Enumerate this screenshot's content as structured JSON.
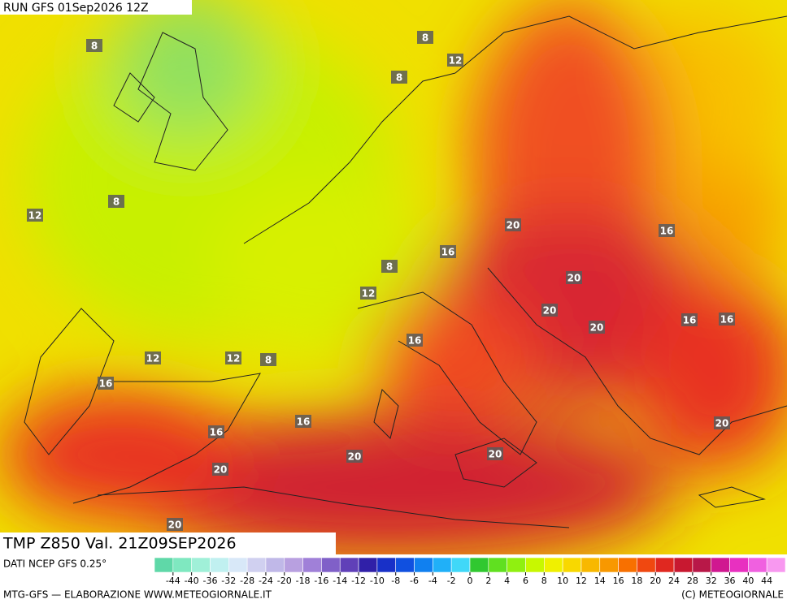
{
  "header": {
    "run": "RUN GFS 01Sep2026 12Z"
  },
  "map": {
    "field": "TMP Z850 Val. 21Z09SEP2026",
    "contour_labels": [
      8,
      8,
      12,
      8,
      8,
      12,
      20,
      16,
      16,
      8,
      20,
      12,
      20,
      20,
      16,
      16,
      16,
      12,
      12,
      8,
      16,
      16,
      16,
      20,
      20,
      20,
      20,
      20
    ]
  },
  "legend": {
    "source": "DATI NCEP GFS 0.25°",
    "ticks": [
      -44,
      -40,
      -36,
      -32,
      -28,
      -24,
      -20,
      -18,
      -16,
      -14,
      -12,
      -10,
      -8,
      -6,
      -4,
      -2,
      0,
      2,
      4,
      6,
      8,
      10,
      12,
      14,
      16,
      18,
      20,
      24,
      28,
      32,
      36,
      40,
      44
    ],
    "colors": [
      "#5fd8a8",
      "#7fe8c0",
      "#a0f0d8",
      "#c0f0f0",
      "#d8e8f8",
      "#d0d0f0",
      "#c0b8e8",
      "#b8a0e0",
      "#a080d8",
      "#8060c8",
      "#6040b8",
      "#3020a8",
      "#1830c8",
      "#1050e0",
      "#1080f0",
      "#20b0f8",
      "#40d8f8",
      "#30c830",
      "#60e020",
      "#90f010",
      "#c8f800",
      "#f0f000",
      "#f8d800",
      "#f8b800",
      "#f89800",
      "#f87000",
      "#f04810",
      "#e02820",
      "#c81830",
      "#b81848",
      "#d01890",
      "#e830c0",
      "#f060e0",
      "#f898f0"
    ],
    "credit": "MTG-GFS — ELABORAZIONE WWW.METEOGIORNALE.IT",
    "copyright": "(C) METEOGIORNALE"
  }
}
